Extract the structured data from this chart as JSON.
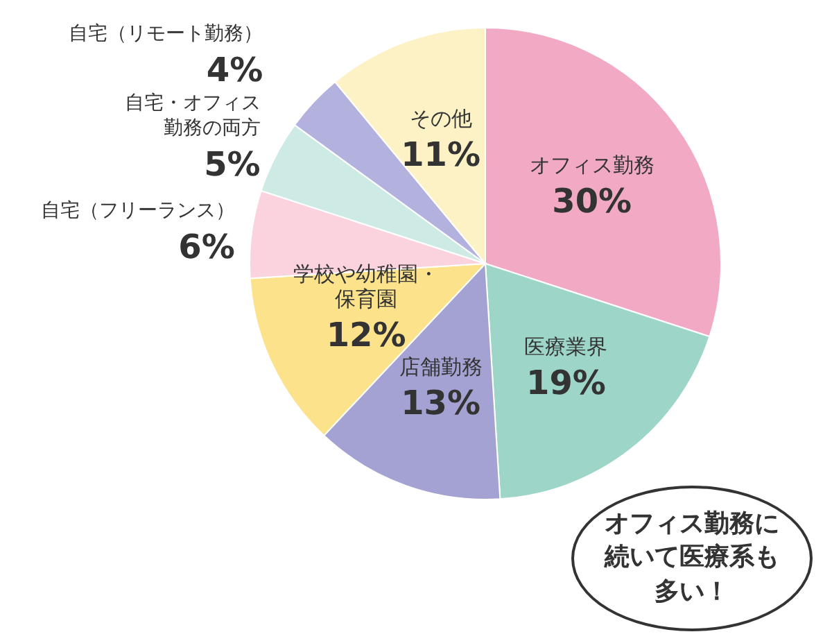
{
  "chart_data": {
    "type": "pie",
    "categories": [
      "オフィス勤務",
      "医療業界",
      "店舗勤務",
      "学校や幼稚園・保育園",
      "自宅（フリーランス）",
      "自宅・オフィス勤務の両方",
      "自宅（リモート勤務）",
      "その他"
    ],
    "values": [
      30,
      19,
      13,
      12,
      6,
      5,
      4,
      11
    ],
    "value_labels": [
      "30%",
      "19%",
      "13%",
      "12%",
      "6%",
      "5%",
      "4%",
      "11%"
    ],
    "colors": [
      "#f2a9c4",
      "#9dd6c9",
      "#a3a2d2",
      "#fde28c",
      "#fad3df",
      "#cdebe4",
      "#b3b1dd",
      "#fdf2c6"
    ],
    "annotations": [
      "オフィス勤務に続いて医療系も多い！"
    ]
  }
}
